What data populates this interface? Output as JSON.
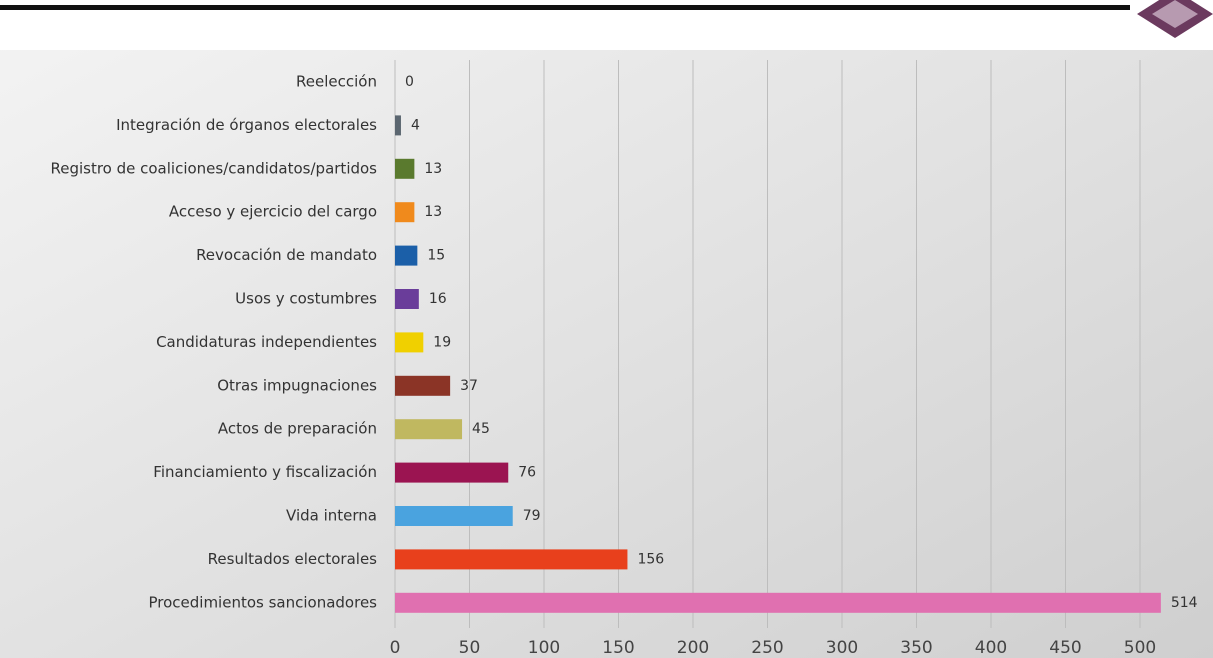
{
  "chart_data": {
    "type": "hbar",
    "categories": [
      "Reelección",
      "Integración de órganos electorales",
      "Registro de coaliciones/candidatos/partidos",
      "Acceso y ejercicio del cargo",
      "Revocación de mandato",
      "Usos y costumbres",
      "Candidaturas independientes",
      "Otras impugnaciones",
      "Actos de preparación",
      "Financiamiento y fiscalización",
      "Vida interna",
      "Resultados electorales",
      "Procedimientos sancionadores"
    ],
    "values": [
      0,
      4,
      13,
      13,
      15,
      16,
      19,
      37,
      45,
      76,
      79,
      156,
      514
    ],
    "colors": [
      "#888888",
      "#5b6670",
      "#5a7a2e",
      "#f08a1c",
      "#1b5fa8",
      "#6a3d9a",
      "#f0d000",
      "#8b3426",
      "#c0b860",
      "#9b1451",
      "#4aa3df",
      "#e8401c",
      "#e070b0"
    ],
    "xlim": [
      0,
      500
    ],
    "xticks": [
      0,
      50,
      100,
      150,
      200,
      250,
      300,
      350,
      400,
      450,
      500
    ],
    "grid": true
  }
}
